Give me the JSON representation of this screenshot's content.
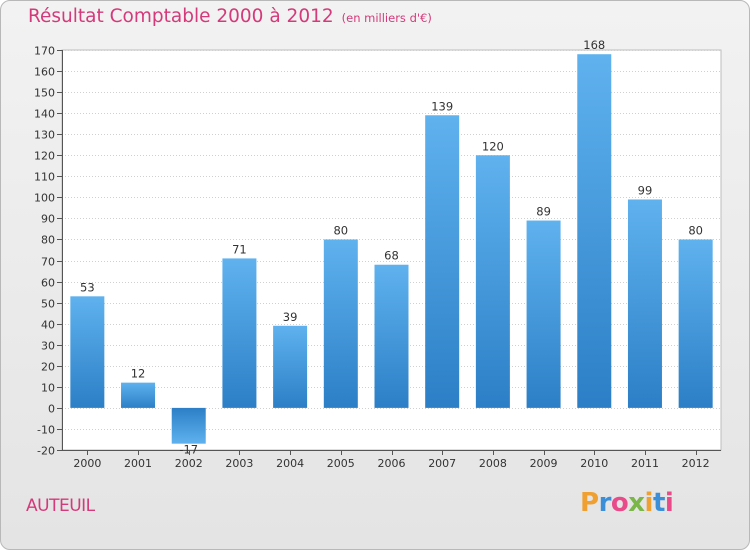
{
  "header": {
    "title": "Résultat Comptable 2000 à 2012",
    "unit": "(en milliers d'€)"
  },
  "footer": {
    "city": "AUTEUIL",
    "logo_letters": [
      "P",
      "r",
      "o",
      "x",
      "i",
      "t",
      "i"
    ],
    "logo_colors": [
      "#f0a030",
      "#3a8fd8",
      "#e84a8a",
      "#7ab648",
      "#f0a030",
      "#3a8fd8",
      "#e84a8a"
    ]
  },
  "colors": {
    "bar_top": "#5fb2ee",
    "bar_bottom": "#2c7fc6",
    "bar_neg_top": "#2c7fc6",
    "bar_neg_bottom": "#5fb2ee",
    "grid": "#d0d0d0",
    "title": "#d43a7a"
  },
  "chart_data": {
    "type": "bar",
    "title": "Résultat Comptable 2000 à 2012",
    "ylabel": "en milliers d'€",
    "xlabel": "",
    "categories": [
      "2000",
      "2001",
      "2002",
      "2003",
      "2004",
      "2005",
      "2006",
      "2007",
      "2008",
      "2009",
      "2010",
      "2011",
      "2012"
    ],
    "values": [
      53,
      12,
      -17,
      71,
      39,
      80,
      68,
      139,
      120,
      89,
      168,
      99,
      80
    ],
    "value_labels": [
      "53",
      "12",
      "-17",
      "71",
      "39",
      "80",
      "68",
      "139",
      "120",
      "89",
      "168",
      "99",
      "80"
    ],
    "ylim": [
      -20,
      170
    ],
    "yticks": [
      "-20",
      "-10",
      "0",
      "10",
      "20",
      "30",
      "40",
      "50",
      "60",
      "70",
      "80",
      "90",
      "100",
      "110",
      "120",
      "130",
      "140",
      "150",
      "160",
      "170"
    ],
    "grid": true
  }
}
